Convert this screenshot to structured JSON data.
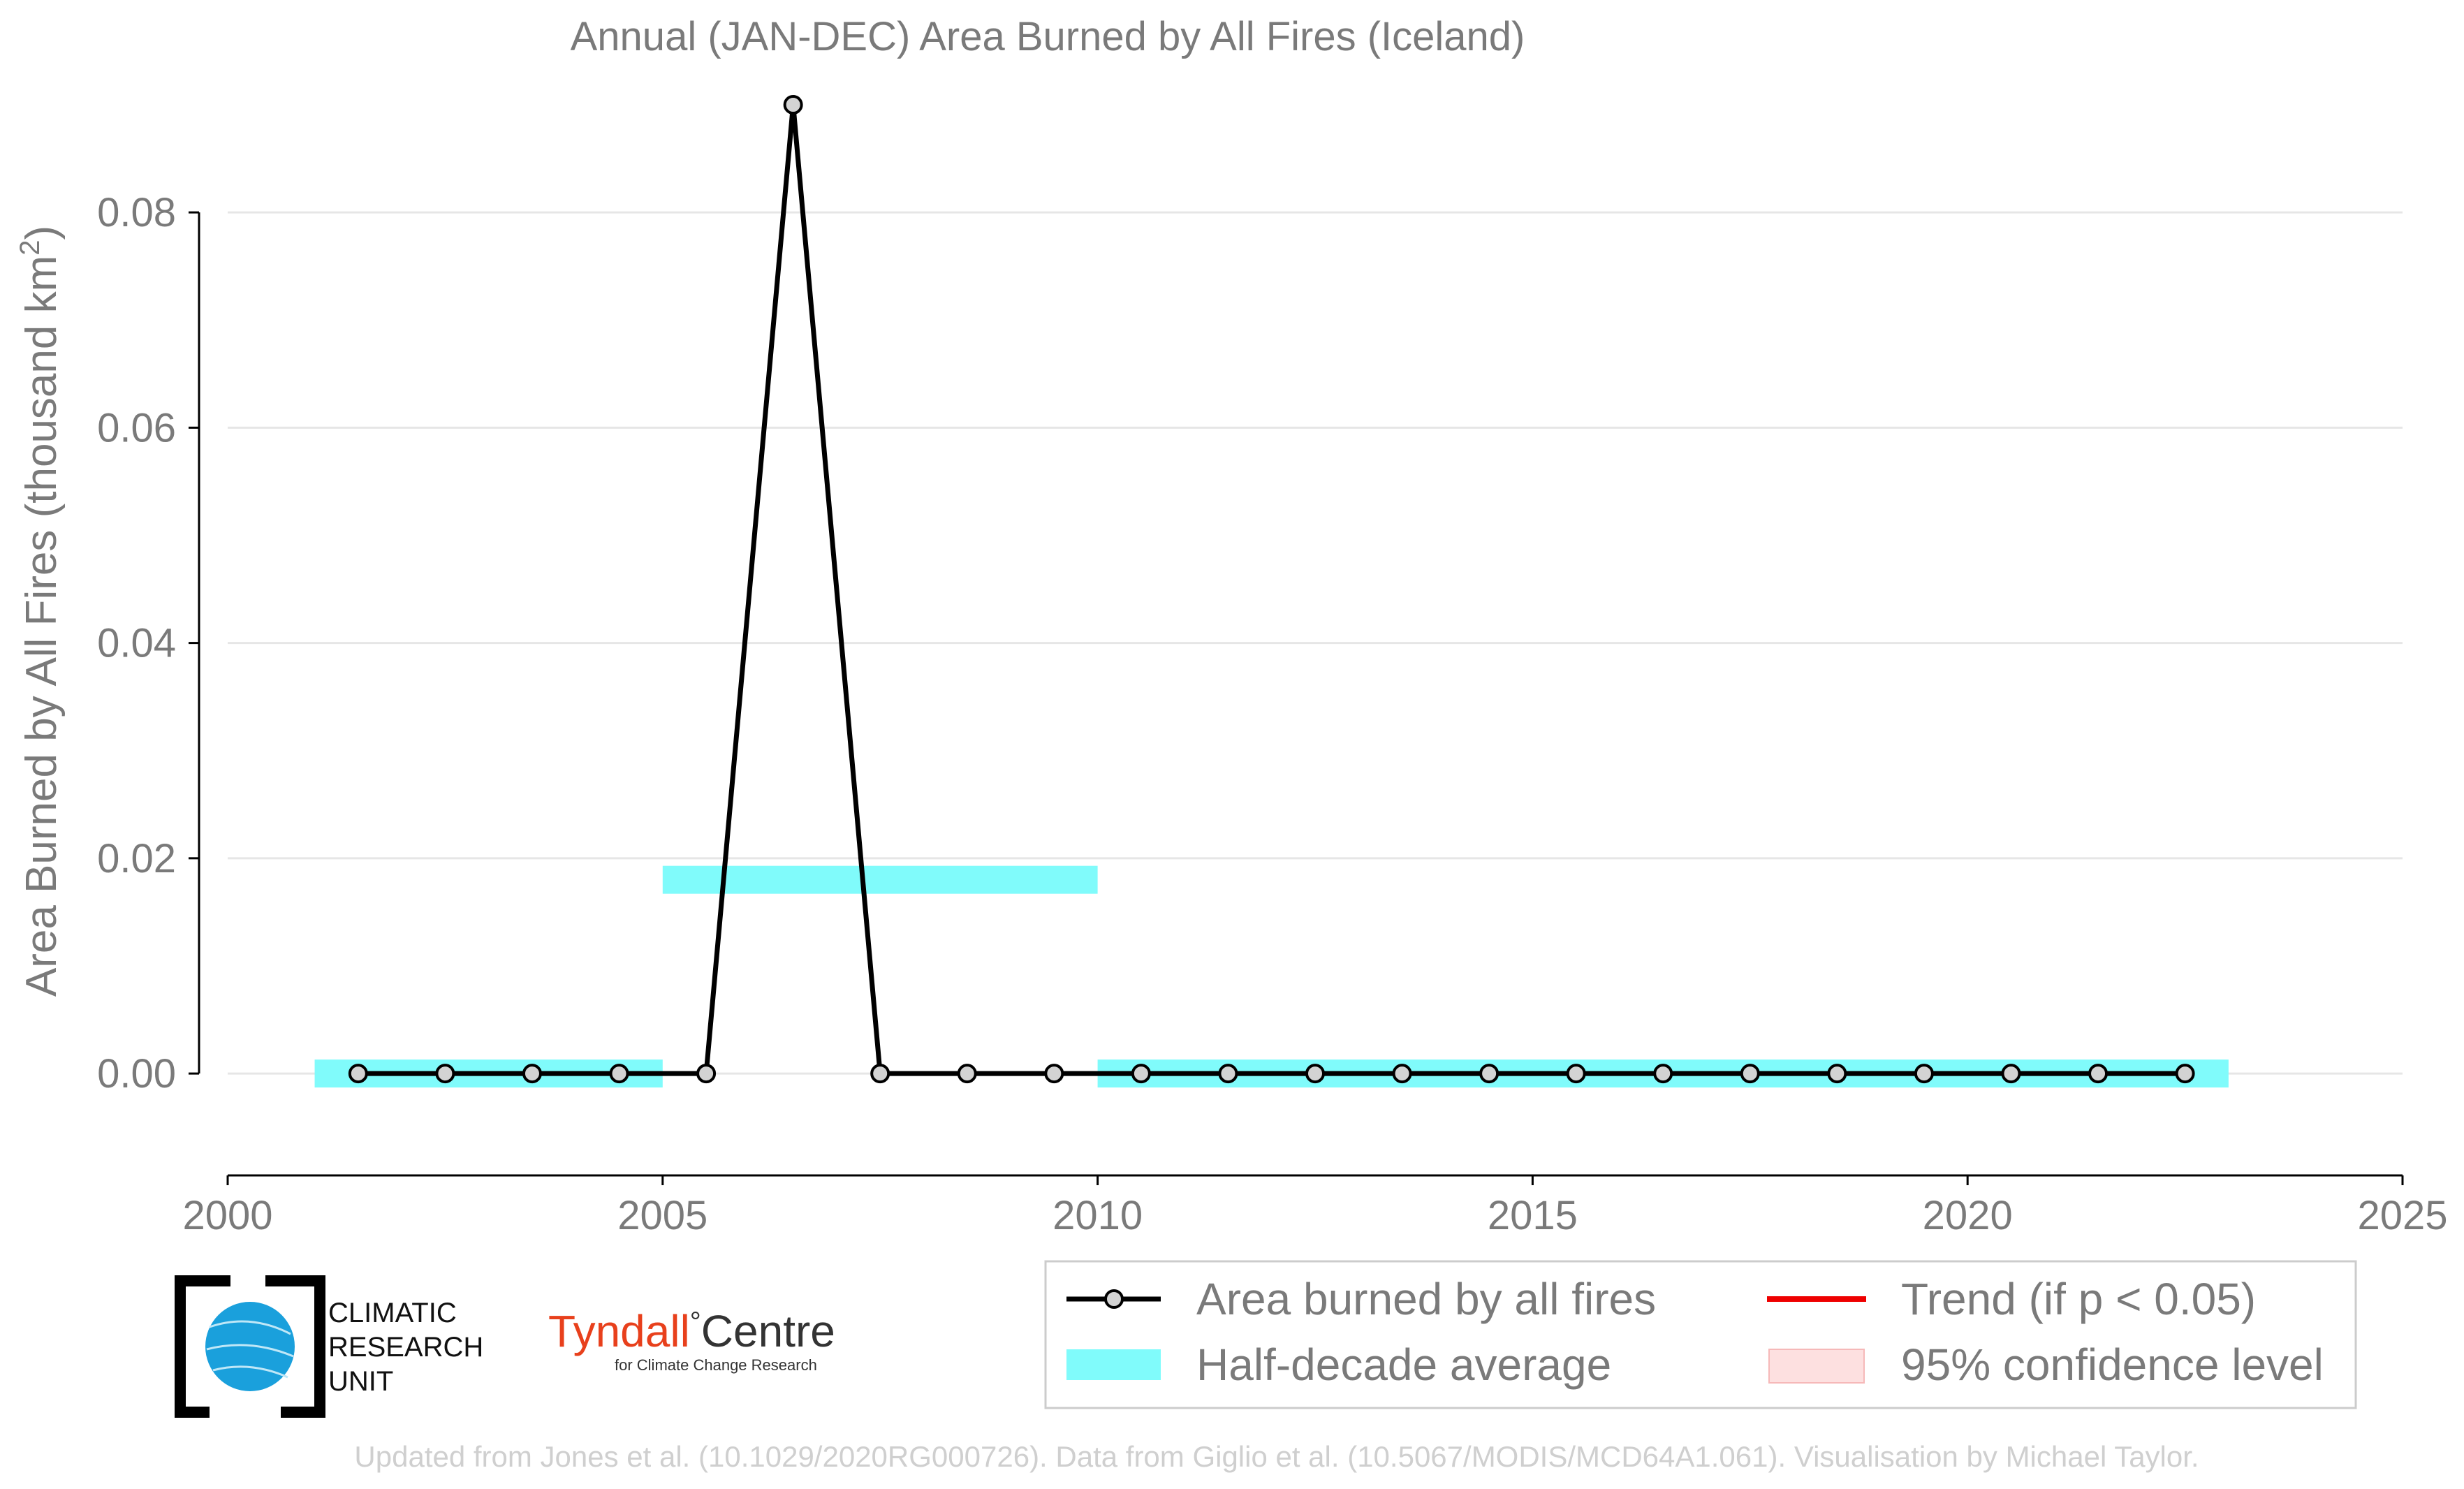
{
  "chart_data": {
    "type": "line",
    "title": "Annual (JAN-DEC) Area Burned by All Fires (Iceland)",
    "ylabel_main": "Area Burned by All Fires (thousand km",
    "ylabel_sup": "2",
    "ylabel_close": ")",
    "xlabel": "",
    "xlim": [
      2000,
      2025
    ],
    "ylim": [
      -0.007,
      0.09
    ],
    "xticks": [
      "2000",
      "2005",
      "2010",
      "2015",
      "2020",
      "2025"
    ],
    "yticks": [
      "0.00",
      "0.02",
      "0.04",
      "0.06",
      "0.08"
    ],
    "grid": "horizontal",
    "series": [
      {
        "name": "Area burned by all fires",
        "color": "#000000",
        "marker_fill": "#d3d3d3",
        "x": [
          2001.5,
          2002.5,
          2003.5,
          2004.5,
          2005.5,
          2006.5,
          2007.5,
          2008.5,
          2009.5,
          2010.5,
          2011.5,
          2012.5,
          2013.5,
          2014.5,
          2015.5,
          2016.5,
          2017.5,
          2018.5,
          2019.5,
          2020.5,
          2021.5,
          2022.5
        ],
        "y": [
          0,
          0,
          0,
          0,
          0,
          0.09,
          0,
          0,
          0,
          0,
          0,
          0,
          0,
          0,
          0,
          0,
          0,
          0,
          0,
          0,
          0,
          0
        ]
      }
    ],
    "half_decade_average": {
      "name": "Half-decade average",
      "color": "#80fbfb",
      "segments": [
        {
          "x_start": 2001,
          "x_end": 2005,
          "y": 0
        },
        {
          "x_start": 2005,
          "x_end": 2010,
          "y": 0.018
        },
        {
          "x_start": 2010,
          "x_end": 2023,
          "y": 0
        }
      ]
    },
    "legend": {
      "placement": "bottom-right",
      "entries": [
        {
          "label": "Area burned by all fires",
          "color": "#000000"
        },
        {
          "label": "Trend (if p < 0.05)",
          "color": "#ee0000"
        },
        {
          "label": "Half-decade average",
          "color": "#80fbfb"
        },
        {
          "label": "95% confidence level",
          "color": "#fde0e0"
        }
      ]
    }
  },
  "logos": {
    "cru_line1": "CLIMATIC",
    "cru_line2": "RESEARCH",
    "cru_line3": "UNIT",
    "tyndall_name": "Tyndall",
    "tyndall_degree": "°",
    "tyndall_centre": "Centre",
    "tyndall_sub": "for Climate Change Research"
  },
  "footer": "Updated from Jones et al. (10.1029/2020RG000726). Data from Giglio et al. (10.5067/MODIS/MCD64A1.061). Visualisation by Michael Taylor."
}
